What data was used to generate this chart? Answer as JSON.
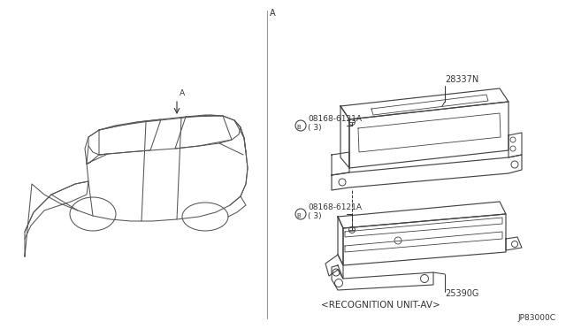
{
  "bg_color": "#ffffff",
  "line_color": "#444444",
  "text_color": "#333333",
  "fig_width": 6.4,
  "fig_height": 3.72,
  "label_28337N": "28337N",
  "label_25390G": "25390G",
  "label_bolt1": "08168-6121A\n( 3)",
  "label_bolt2": "08168-6121A\n( 3)",
  "label_caption": "<RECOGNITION UNIT-AV>",
  "label_diagram_id": "JP83000C",
  "label_A_top": "A",
  "label_A_car": "A"
}
